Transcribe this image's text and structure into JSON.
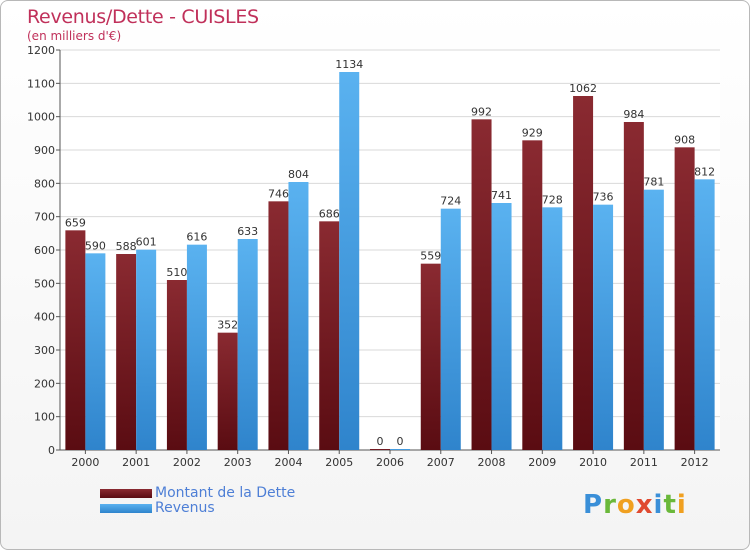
{
  "chart_data": {
    "type": "bar",
    "title": "Revenus/Dette - CUISLES",
    "subtitle": "(en milliers d'€)",
    "categories": [
      "2000",
      "2001",
      "2002",
      "2003",
      "2004",
      "2005",
      "2006",
      "2007",
      "2008",
      "2009",
      "2010",
      "2011",
      "2012"
    ],
    "series": [
      {
        "name": "Montant de la Dette",
        "color": "#7a1c24",
        "values": [
          659,
          588,
          510,
          352,
          746,
          686,
          0,
          559,
          992,
          929,
          1062,
          984,
          908
        ]
      },
      {
        "name": "Revenus",
        "color": "#3c9be3",
        "values": [
          590,
          601,
          616,
          633,
          804,
          1134,
          0,
          724,
          741,
          728,
          736,
          781,
          812
        ]
      }
    ],
    "yticks": [
      0,
      100,
      200,
      300,
      400,
      500,
      600,
      700,
      800,
      900,
      1000,
      1100,
      1200
    ],
    "ylim": [
      0,
      1200
    ],
    "grid": true,
    "legend": "bottom-left"
  },
  "logo": {
    "text": "Proxiti"
  }
}
